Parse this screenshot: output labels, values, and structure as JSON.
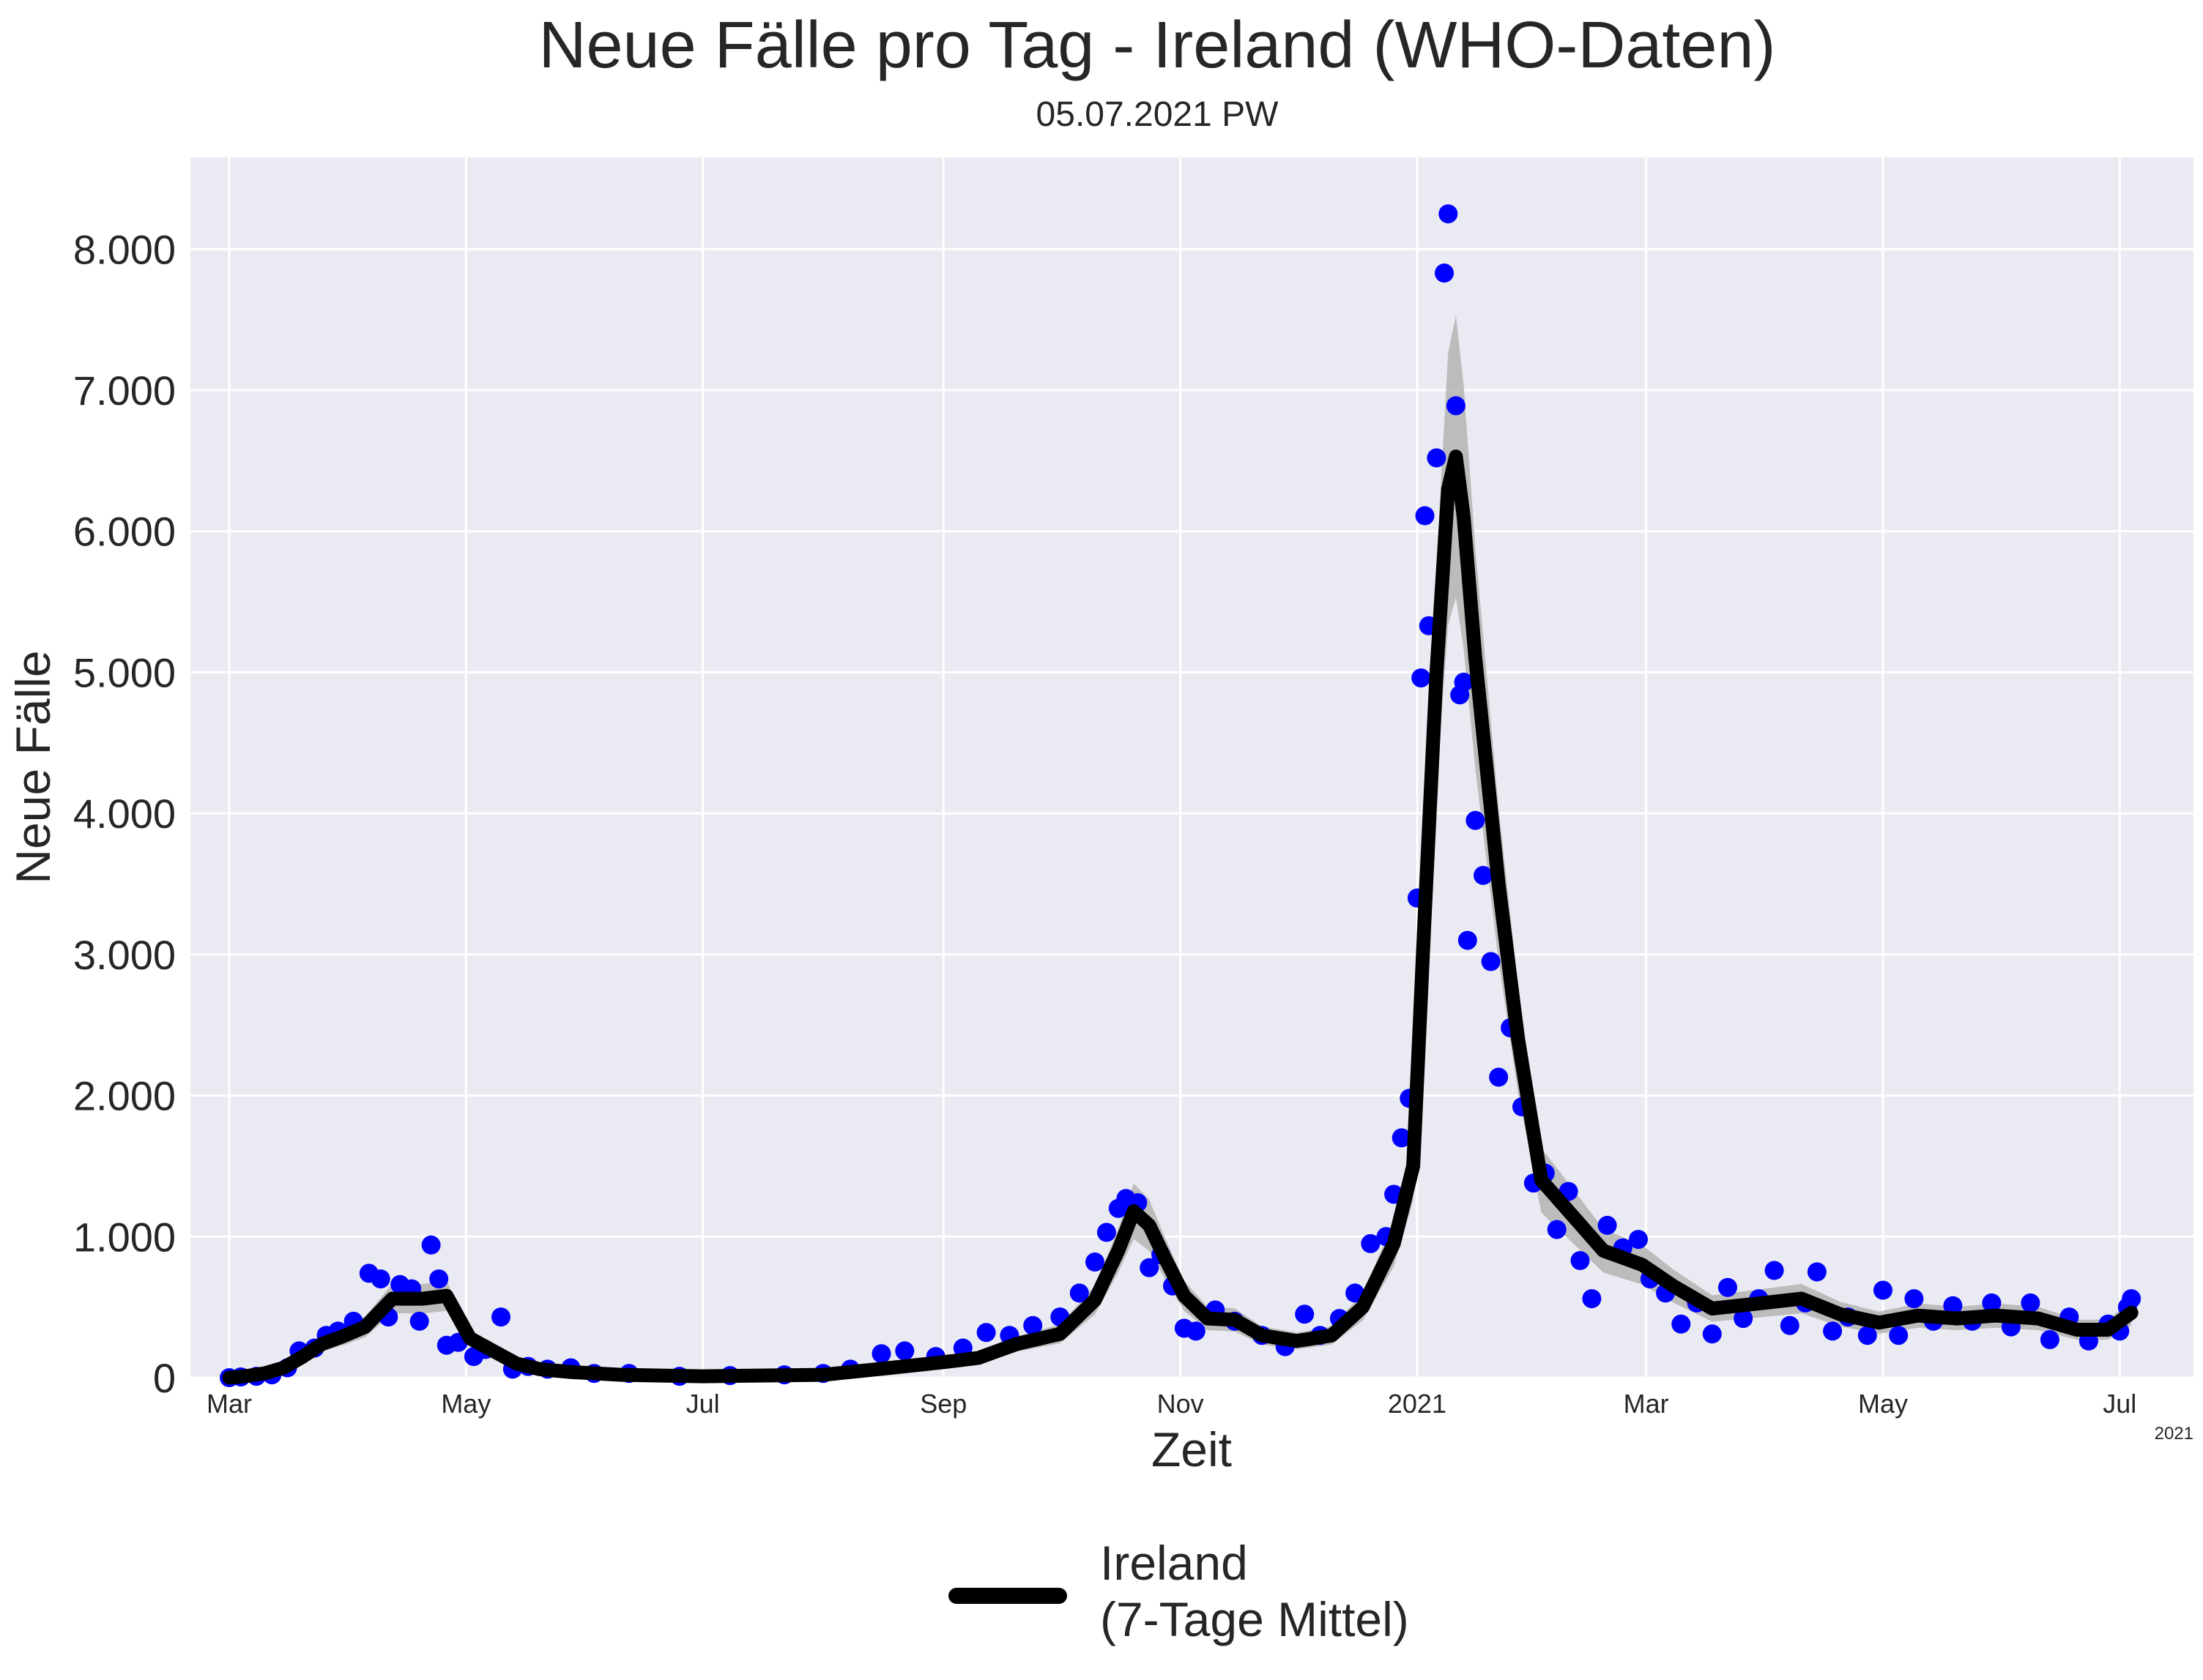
{
  "chart_data": {
    "type": "scatter",
    "title": "Neue Fälle pro Tag - Ireland (WHO-Daten)",
    "subtitle": "05.07.2021 PW",
    "xlabel": "Zeit",
    "ylabel": "Neue Fälle",
    "x_offset_label": "2021",
    "xlim": [
      "2020-02-20",
      "2021-07-20"
    ],
    "ylim": [
      0,
      8650
    ],
    "grid": true,
    "legend_position": "bottom-center",
    "legend": [
      "Ireland",
      "(7-Tage Mittel)"
    ],
    "x_ticks": [
      {
        "date": "2020-03-01",
        "label": "Mar"
      },
      {
        "date": "2020-05-01",
        "label": "May"
      },
      {
        "date": "2020-07-01",
        "label": "Jul"
      },
      {
        "date": "2020-09-01",
        "label": "Sep"
      },
      {
        "date": "2020-11-01",
        "label": "Nov"
      },
      {
        "date": "2021-01-01",
        "label": "2021"
      },
      {
        "date": "2021-03-01",
        "label": "Mar"
      },
      {
        "date": "2021-05-01",
        "label": "May"
      },
      {
        "date": "2021-07-01",
        "label": "Jul"
      }
    ],
    "y_ticks": [
      {
        "value": 0,
        "label": "0"
      },
      {
        "value": 1000,
        "label": "1.000"
      },
      {
        "value": 2000,
        "label": "2.000"
      },
      {
        "value": 3000,
        "label": "3.000"
      },
      {
        "value": 4000,
        "label": "4.000"
      },
      {
        "value": 5000,
        "label": "5.000"
      },
      {
        "value": 6000,
        "label": "6.000"
      },
      {
        "value": 7000,
        "label": "7.000"
      },
      {
        "value": 8000,
        "label": "8.000"
      }
    ],
    "daily_series": {
      "color": "#0000ff",
      "points": [
        [
          "2020-03-01",
          0
        ],
        [
          "2020-03-04",
          5
        ],
        [
          "2020-03-08",
          10
        ],
        [
          "2020-03-12",
          20
        ],
        [
          "2020-03-16",
          70
        ],
        [
          "2020-03-19",
          190
        ],
        [
          "2020-03-23",
          210
        ],
        [
          "2020-03-26",
          300
        ],
        [
          "2020-03-29",
          330
        ],
        [
          "2020-04-02",
          400
        ],
        [
          "2020-04-06",
          740
        ],
        [
          "2020-04-09",
          700
        ],
        [
          "2020-04-11",
          430
        ],
        [
          "2020-04-14",
          660
        ],
        [
          "2020-04-17",
          630
        ],
        [
          "2020-04-19",
          400
        ],
        [
          "2020-04-22",
          940
        ],
        [
          "2020-04-24",
          700
        ],
        [
          "2020-04-26",
          230
        ],
        [
          "2020-04-29",
          250
        ],
        [
          "2020-05-03",
          150
        ],
        [
          "2020-05-06",
          200
        ],
        [
          "2020-05-10",
          430
        ],
        [
          "2020-05-13",
          60
        ],
        [
          "2020-05-17",
          80
        ],
        [
          "2020-05-22",
          60
        ],
        [
          "2020-05-28",
          70
        ],
        [
          "2020-06-03",
          30
        ],
        [
          "2020-06-12",
          30
        ],
        [
          "2020-06-25",
          10
        ],
        [
          "2020-07-08",
          15
        ],
        [
          "2020-07-22",
          20
        ],
        [
          "2020-08-01",
          30
        ],
        [
          "2020-08-08",
          60
        ],
        [
          "2020-08-16",
          170
        ],
        [
          "2020-08-22",
          190
        ],
        [
          "2020-08-30",
          150
        ],
        [
          "2020-09-06",
          210
        ],
        [
          "2020-09-12",
          320
        ],
        [
          "2020-09-18",
          300
        ],
        [
          "2020-09-24",
          370
        ],
        [
          "2020-10-01",
          430
        ],
        [
          "2020-10-06",
          600
        ],
        [
          "2020-10-10",
          820
        ],
        [
          "2020-10-13",
          1030
        ],
        [
          "2020-10-16",
          1200
        ],
        [
          "2020-10-18",
          1270
        ],
        [
          "2020-10-21",
          1240
        ],
        [
          "2020-10-24",
          780
        ],
        [
          "2020-10-27",
          870
        ],
        [
          "2020-10-30",
          650
        ],
        [
          "2020-11-02",
          350
        ],
        [
          "2020-11-05",
          330
        ],
        [
          "2020-11-10",
          480
        ],
        [
          "2020-11-15",
          400
        ],
        [
          "2020-11-22",
          300
        ],
        [
          "2020-11-28",
          220
        ],
        [
          "2020-12-03",
          450
        ],
        [
          "2020-12-07",
          300
        ],
        [
          "2020-12-12",
          420
        ],
        [
          "2020-12-16",
          600
        ],
        [
          "2020-12-20",
          950
        ],
        [
          "2020-12-24",
          1000
        ],
        [
          "2020-12-26",
          1300
        ],
        [
          "2020-12-28",
          1700
        ],
        [
          "2020-12-30",
          1980
        ],
        [
          "2021-01-01",
          3400
        ],
        [
          "2021-01-02",
          4960
        ],
        [
          "2021-01-03",
          6110
        ],
        [
          "2021-01-04",
          5330
        ],
        [
          "2021-01-06",
          6520
        ],
        [
          "2021-01-08",
          7830
        ],
        [
          "2021-01-09",
          8250
        ],
        [
          "2021-01-11",
          6890
        ],
        [
          "2021-01-12",
          4840
        ],
        [
          "2021-01-13",
          4930
        ],
        [
          "2021-01-14",
          3100
        ],
        [
          "2021-01-16",
          3950
        ],
        [
          "2021-01-18",
          3560
        ],
        [
          "2021-01-20",
          2950
        ],
        [
          "2021-01-22",
          2130
        ],
        [
          "2021-01-25",
          2480
        ],
        [
          "2021-01-28",
          1920
        ],
        [
          "2021-01-31",
          1380
        ],
        [
          "2021-02-03",
          1450
        ],
        [
          "2021-02-06",
          1050
        ],
        [
          "2021-02-09",
          1320
        ],
        [
          "2021-02-12",
          830
        ],
        [
          "2021-02-15",
          560
        ],
        [
          "2021-02-19",
          1080
        ],
        [
          "2021-02-23",
          920
        ],
        [
          "2021-02-27",
          980
        ],
        [
          "2021-03-02",
          700
        ],
        [
          "2021-03-06",
          600
        ],
        [
          "2021-03-10",
          380
        ],
        [
          "2021-03-14",
          530
        ],
        [
          "2021-03-18",
          310
        ],
        [
          "2021-03-22",
          640
        ],
        [
          "2021-03-26",
          420
        ],
        [
          "2021-03-30",
          560
        ],
        [
          "2021-04-03",
          760
        ],
        [
          "2021-04-07",
          370
        ],
        [
          "2021-04-11",
          530
        ],
        [
          "2021-04-14",
          750
        ],
        [
          "2021-04-18",
          330
        ],
        [
          "2021-04-22",
          430
        ],
        [
          "2021-04-27",
          300
        ],
        [
          "2021-05-01",
          620
        ],
        [
          "2021-05-05",
          300
        ],
        [
          "2021-05-09",
          560
        ],
        [
          "2021-05-14",
          400
        ],
        [
          "2021-05-19",
          510
        ],
        [
          "2021-05-24",
          400
        ],
        [
          "2021-05-29",
          530
        ],
        [
          "2021-06-03",
          360
        ],
        [
          "2021-06-08",
          530
        ],
        [
          "2021-06-13",
          270
        ],
        [
          "2021-06-18",
          430
        ],
        [
          "2021-06-23",
          260
        ],
        [
          "2021-06-28",
          380
        ],
        [
          "2021-07-01",
          330
        ],
        [
          "2021-07-03",
          500
        ],
        [
          "2021-07-04",
          560
        ]
      ]
    },
    "mean_series": {
      "name": "Ireland",
      "color": "#000000",
      "band_color": "#b4b4b4",
      "points": [
        [
          "2020-03-01",
          0
        ],
        [
          "2020-03-05",
          10
        ],
        [
          "2020-03-10",
          30
        ],
        [
          "2020-03-15",
          70
        ],
        [
          "2020-03-20",
          150
        ],
        [
          "2020-03-25",
          240
        ],
        [
          "2020-03-30",
          290
        ],
        [
          "2020-04-05",
          360
        ],
        [
          "2020-04-12",
          560
        ],
        [
          "2020-04-20",
          560
        ],
        [
          "2020-04-26",
          580
        ],
        [
          "2020-05-02",
          280
        ],
        [
          "2020-05-08",
          190
        ],
        [
          "2020-05-14",
          100
        ],
        [
          "2020-05-20",
          60
        ],
        [
          "2020-05-28",
          40
        ],
        [
          "2020-06-10",
          20
        ],
        [
          "2020-07-01",
          10
        ],
        [
          "2020-08-01",
          20
        ],
        [
          "2020-08-15",
          60
        ],
        [
          "2020-09-01",
          110
        ],
        [
          "2020-09-10",
          140
        ],
        [
          "2020-09-20",
          240
        ],
        [
          "2020-10-01",
          310
        ],
        [
          "2020-10-10",
          550
        ],
        [
          "2020-10-16",
          900
        ],
        [
          "2020-10-20",
          1180
        ],
        [
          "2020-10-24",
          1080
        ],
        [
          "2020-10-28",
          850
        ],
        [
          "2020-11-02",
          580
        ],
        [
          "2020-11-08",
          420
        ],
        [
          "2020-11-15",
          410
        ],
        [
          "2020-11-22",
          300
        ],
        [
          "2020-12-01",
          260
        ],
        [
          "2020-12-10",
          300
        ],
        [
          "2020-12-18",
          500
        ],
        [
          "2020-12-26",
          950
        ],
        [
          "2020-12-31",
          1500
        ],
        [
          "2021-01-03",
          3300
        ],
        [
          "2021-01-06",
          5000
        ],
        [
          "2021-01-09",
          6300
        ],
        [
          "2021-01-11",
          6530
        ],
        [
          "2021-01-13",
          6100
        ],
        [
          "2021-01-16",
          5100
        ],
        [
          "2021-01-19",
          4300
        ],
        [
          "2021-01-22",
          3500
        ],
        [
          "2021-01-27",
          2400
        ],
        [
          "2021-02-02",
          1400
        ],
        [
          "2021-02-10",
          1150
        ],
        [
          "2021-02-18",
          900
        ],
        [
          "2021-02-28",
          800
        ],
        [
          "2021-03-08",
          650
        ],
        [
          "2021-03-18",
          490
        ],
        [
          "2021-03-28",
          520
        ],
        [
          "2021-04-10",
          560
        ],
        [
          "2021-04-20",
          450
        ],
        [
          "2021-04-30",
          390
        ],
        [
          "2021-05-10",
          440
        ],
        [
          "2021-05-20",
          420
        ],
        [
          "2021-05-30",
          440
        ],
        [
          "2021-06-10",
          420
        ],
        [
          "2021-06-20",
          340
        ],
        [
          "2021-06-28",
          340
        ],
        [
          "2021-07-04",
          460
        ]
      ]
    }
  }
}
